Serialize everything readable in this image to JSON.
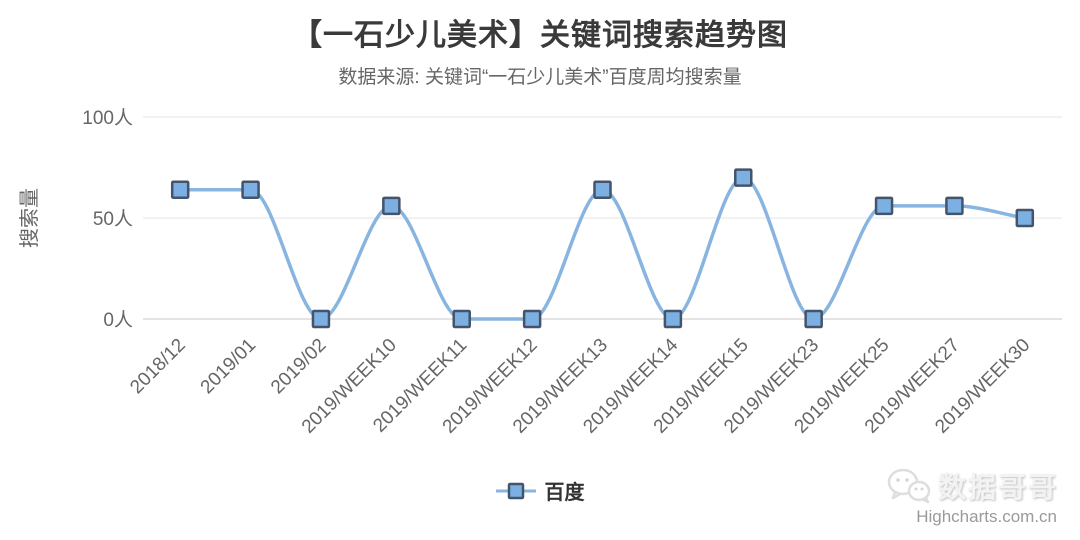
{
  "header": {
    "title": "【一石少儿美术】关键词搜索趋势图",
    "subtitle": "数据来源: 关键词“一石少儿美术”百度周均搜索量"
  },
  "chart_data": {
    "type": "spline",
    "categories": [
      "2018/12",
      "2019/01",
      "2019/02",
      "2019/WEEK10",
      "2019/WEEK11",
      "2019/WEEK12",
      "2019/WEEK13",
      "2019/WEEK14",
      "2019/WEEK15",
      "2019/WEEK23",
      "2019/WEEK25",
      "2019/WEEK27",
      "2019/WEEK30"
    ],
    "series": [
      {
        "name": "百度",
        "values": [
          64,
          64,
          0,
          56,
          0,
          0,
          64,
          0,
          70,
          0,
          56,
          56,
          50
        ]
      }
    ],
    "title": "【一石少儿美术】关键词搜索趋势图",
    "subtitle": "数据来源: 关键词“一石少儿美术”百度周均搜索量",
    "xlabel": "",
    "ylabel": "搜索量",
    "ylim": [
      0,
      100
    ],
    "yticks": [
      {
        "value": 0,
        "label": "0人"
      },
      {
        "value": 50,
        "label": "50人"
      },
      {
        "value": 100,
        "label": "100人"
      }
    ],
    "grid": true,
    "legend_position": "bottom",
    "style": {
      "line_color": "#88b5e0",
      "marker_fill": "#7cb0e3",
      "marker_stroke": "#44546a",
      "grid_color": "#e6e6e6",
      "axis_line_color": "#c8c8c8",
      "axis_label_color": "#666666",
      "axis_title_color": "#666666"
    }
  },
  "legend": {
    "items": [
      {
        "label": "百度"
      }
    ]
  },
  "watermark": {
    "brand": "数据哥哥",
    "site": "Highcharts.com.cn"
  }
}
